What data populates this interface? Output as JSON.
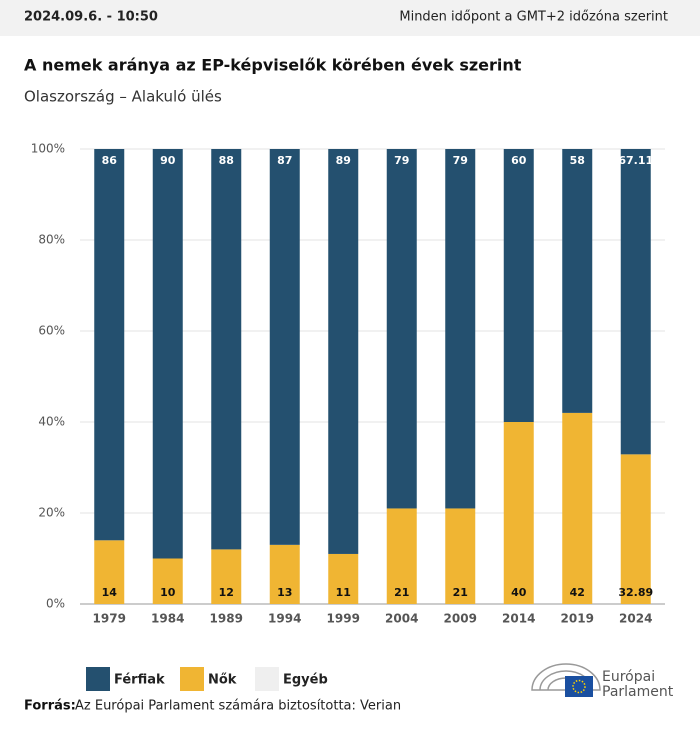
{
  "header": {
    "timestamp": "2024.09.6. - 10:50",
    "timezone_note": "Minden időpont a GMT+2 időzóna szerint"
  },
  "chart_data": {
    "type": "stacked_bar",
    "title": "A nemek aránya az EP-képviselők körében évek szerint",
    "subtitle": "Olaszország – Alakuló ülés",
    "categories": [
      "1979",
      "1984",
      "1989",
      "1994",
      "1999",
      "2004",
      "2009",
      "2014",
      "2019",
      "2024"
    ],
    "series": [
      {
        "name": "Férfiak",
        "color": "#24506f",
        "values": [
          86,
          90,
          88,
          87,
          89,
          79,
          79,
          60,
          58,
          67.11
        ]
      },
      {
        "name": "Nők",
        "color": "#f0b533",
        "values": [
          14,
          10,
          12,
          13,
          11,
          21,
          21,
          40,
          42,
          32.89
        ]
      },
      {
        "name": "Egyéb",
        "color": "#efefef",
        "values": [
          0,
          0,
          0,
          0,
          0,
          0,
          0,
          0,
          0,
          0
        ]
      }
    ],
    "ylim": [
      0,
      100
    ],
    "yticks": [
      {
        "value": 0,
        "label": "0%"
      },
      {
        "value": 20,
        "label": "20%"
      },
      {
        "value": 40,
        "label": "40%"
      },
      {
        "value": 60,
        "label": "60%"
      },
      {
        "value": 80,
        "label": "80%"
      },
      {
        "value": 100,
        "label": "100%"
      }
    ],
    "grid": true
  },
  "footer": {
    "source_label": "Forrás:",
    "source_text": "Az Európai Parlament számára biztosította: Verian",
    "logo_line1": "Európai",
    "logo_line2": "Parlament"
  }
}
